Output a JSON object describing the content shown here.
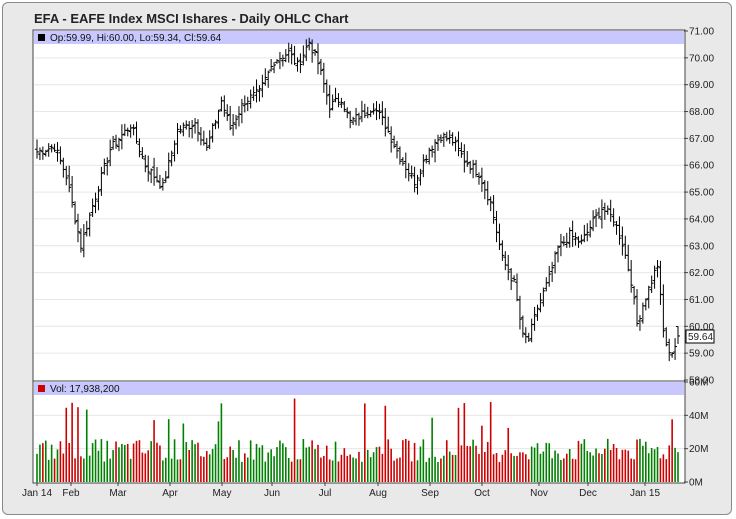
{
  "chart_data": {
    "type": "ohlc",
    "title": "EFA - EAFE Index MSCI Ishares - Daily OHLC Chart",
    "info": {
      "open_text": "Op:59.99, Hi:60.00, Lo:59.34, Cl:59.64",
      "volume_text": "Vol: 17,938,200",
      "last_price_label": "59.64",
      "last_price": 59.64
    },
    "price_axis": {
      "ylim": [
        58,
        71
      ],
      "ticks": [
        "58.00",
        "59.00",
        "60.00",
        "61.00",
        "62.00",
        "63.00",
        "64.00",
        "65.00",
        "66.00",
        "67.00",
        "68.00",
        "69.00",
        "70.00",
        "71.00"
      ]
    },
    "volume_axis": {
      "ylim": [
        0,
        60
      ],
      "ticks": [
        "0M",
        "20M",
        "40M",
        "60M"
      ]
    },
    "x_labels": [
      "Jan 14",
      "Feb",
      "Mar",
      "Apr",
      "May",
      "Jun",
      "Jul",
      "Aug",
      "Sep",
      "Oct",
      "Nov",
      "Dec",
      "Jan 15"
    ],
    "price_anchors": [
      [
        0,
        66.5
      ],
      [
        6,
        66.7
      ],
      [
        10,
        65.6
      ],
      [
        15,
        63.0
      ],
      [
        19,
        64.5
      ],
      [
        25,
        66.6
      ],
      [
        32,
        67.5
      ],
      [
        37,
        66.0
      ],
      [
        43,
        65.2
      ],
      [
        48,
        67.3
      ],
      [
        54,
        67.6
      ],
      [
        58,
        66.6
      ],
      [
        63,
        68.4
      ],
      [
        66,
        67.4
      ],
      [
        71,
        68.4
      ],
      [
        76,
        68.7
      ],
      [
        81,
        69.9
      ],
      [
        86,
        70.2
      ],
      [
        89,
        69.7
      ],
      [
        93,
        70.6
      ],
      [
        96,
        69.8
      ],
      [
        100,
        68.2
      ],
      [
        104,
        68.5
      ],
      [
        107,
        67.6
      ],
      [
        111,
        67.9
      ],
      [
        115,
        68.2
      ],
      [
        119,
        67.5
      ],
      [
        124,
        66.3
      ],
      [
        129,
        65.4
      ],
      [
        134,
        66.6
      ],
      [
        138,
        67.1
      ],
      [
        142,
        66.9
      ],
      [
        146,
        66.2
      ],
      [
        151,
        65.7
      ],
      [
        155,
        64.6
      ],
      [
        159,
        62.5
      ],
      [
        163,
        61.6
      ],
      [
        166,
        59.6
      ],
      [
        168,
        59.5
      ],
      [
        171,
        60.7
      ],
      [
        175,
        61.8
      ],
      [
        178,
        62.9
      ],
      [
        182,
        63.4
      ],
      [
        186,
        63.1
      ],
      [
        190,
        63.9
      ],
      [
        193,
        64.4
      ],
      [
        197,
        64.0
      ],
      [
        200,
        63.1
      ],
      [
        203,
        61.7
      ],
      [
        205,
        60.1
      ],
      [
        207,
        60.8
      ],
      [
        210,
        61.7
      ],
      [
        212,
        62.3
      ],
      [
        214,
        59.8
      ],
      [
        216,
        58.9
      ],
      [
        219,
        59.5
      ]
    ],
    "ohlc_sample": [
      {
        "label": "last",
        "open": 59.99,
        "high": 60.0,
        "low": 59.34,
        "close": 59.64
      }
    ],
    "volume_sample": [
      {
        "label": "last",
        "value": 17.9382
      }
    ]
  },
  "colors": {
    "background": "#e9e9e9",
    "plot_bg": "#ffffff",
    "info_band": "#c8c8ff",
    "bar": "#000000",
    "volume_up": "#008000",
    "volume_down": "#cc0000",
    "grid": "#d9d9d9"
  }
}
